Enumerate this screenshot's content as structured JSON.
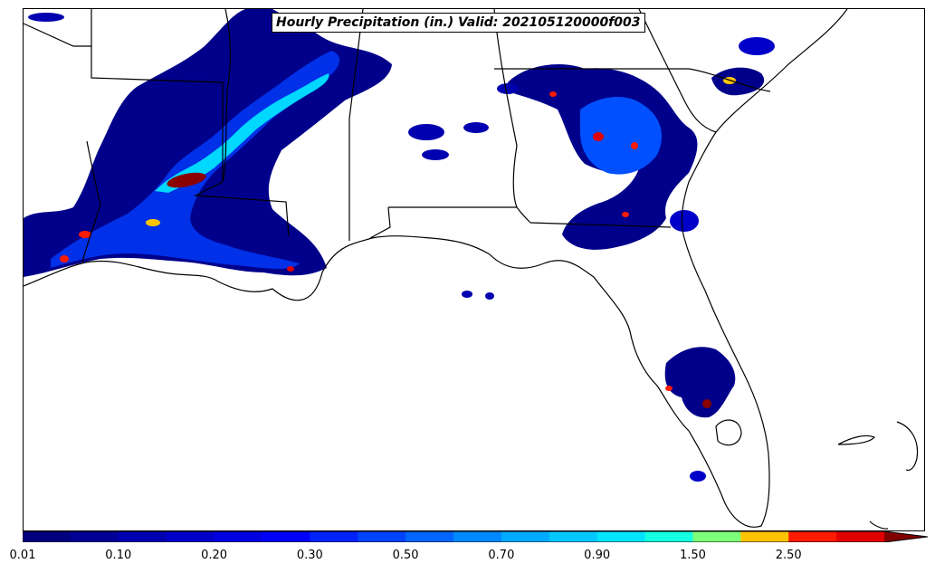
{
  "title": "Hourly Precipitation (in.) Valid: 202105120000f003",
  "colorbar": {
    "colors": [
      "#00007f",
      "#000096",
      "#0000b0",
      "#0000c8",
      "#0000e0",
      "#0000fa",
      "#0022ff",
      "#0044ff",
      "#0066ff",
      "#0088ff",
      "#00aaff",
      "#00c8ff",
      "#00e4ff",
      "#15ffe1",
      "#7dff7a",
      "#ffc400",
      "#ff1a00",
      "#e00000"
    ],
    "extend_color": "#800000",
    "tick_labels": [
      "0.01",
      "0.10",
      "0.20",
      "0.30",
      "0.50",
      "0.70",
      "0.90",
      "1.50",
      "2.50"
    ]
  },
  "colors": {
    "boundary": "#000000",
    "precip_low": "#00008b",
    "precip_mid": "#0050ff",
    "precip_high": "#00e0ff",
    "precip_green": "#7dff7a",
    "precip_max": "#8b0000"
  }
}
